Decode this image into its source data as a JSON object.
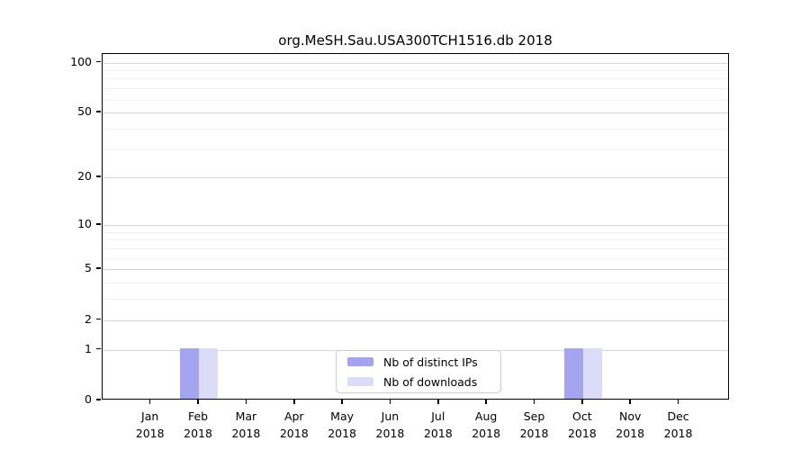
{
  "chart_data": {
    "type": "bar",
    "title": "org.MeSH.Sau.USA300TCH1516.db 2018",
    "x_tick_labels": [
      {
        "month": "Jan",
        "year": "2018"
      },
      {
        "month": "Feb",
        "year": "2018"
      },
      {
        "month": "Mar",
        "year": "2018"
      },
      {
        "month": "Apr",
        "year": "2018"
      },
      {
        "month": "May",
        "year": "2018"
      },
      {
        "month": "Jun",
        "year": "2018"
      },
      {
        "month": "Jul",
        "year": "2018"
      },
      {
        "month": "Aug",
        "year": "2018"
      },
      {
        "month": "Sep",
        "year": "2018"
      },
      {
        "month": "Oct",
        "year": "2018"
      },
      {
        "month": "Nov",
        "year": "2018"
      },
      {
        "month": "Dec",
        "year": "2018"
      }
    ],
    "series": [
      {
        "name": "Nb of distinct IPs",
        "key": "distinct-ips",
        "color": "#a5a5ef",
        "values": [
          0,
          1,
          0,
          0,
          0,
          0,
          0,
          0,
          0,
          1,
          0,
          0
        ]
      },
      {
        "name": "Nb of downloads",
        "key": "downloads",
        "color": "#dcdcf8",
        "values": [
          0,
          1,
          0,
          0,
          0,
          0,
          0,
          0,
          0,
          1,
          0,
          0
        ]
      }
    ],
    "yscale": "log1p",
    "ylim": [
      0,
      100
    ],
    "y_major_ticks": [
      0,
      1,
      2,
      5,
      10,
      20,
      50,
      100
    ],
    "y_minor_gridlines": [
      3,
      4,
      6,
      7,
      8,
      9,
      30,
      40,
      60,
      70,
      80,
      90
    ],
    "grid": true,
    "legend": {
      "position": "bottom-center"
    },
    "colors": {
      "major_grid": "#d6d6d6",
      "minor_grid": "#f0f0f0",
      "axis": "#000000",
      "background": "#ffffff"
    }
  }
}
